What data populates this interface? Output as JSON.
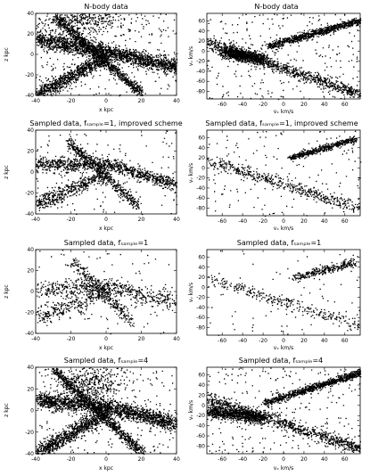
{
  "chart_data": [
    {
      "type": "scatter",
      "title": "N-body data",
      "xlabel": "x kpc",
      "ylabel": "z kpc",
      "xlim": [
        -40,
        40
      ],
      "ylim": [
        -40,
        40
      ],
      "xticks": [
        "-40",
        "-20",
        "0",
        "20",
        "40"
      ],
      "yticks": [
        "40",
        "20",
        "0",
        "-20",
        "-40"
      ],
      "density": "high",
      "structure": [
        {
          "kind": "band",
          "from": [
            -40,
            15
          ],
          "to": [
            0,
            3
          ],
          "spread": 7
        },
        {
          "kind": "band",
          "from": [
            0,
            3
          ],
          "to": [
            40,
            -12
          ],
          "spread": 6
        },
        {
          "kind": "band",
          "from": [
            -30,
            38
          ],
          "to": [
            20,
            -38
          ],
          "spread": 4
        },
        {
          "kind": "band",
          "from": [
            -40,
            -40
          ],
          "to": [
            0,
            -2
          ],
          "spread": 6
        },
        {
          "kind": "blob",
          "center": [
            -14,
            34
          ],
          "radius": [
            13,
            6
          ]
        },
        {
          "kind": "uniform"
        }
      ]
    },
    {
      "type": "scatter",
      "title": "N-body data",
      "xlabel": "vₓ km/s",
      "ylabel": "vᵧ km/s",
      "xlim": [
        -75,
        75
      ],
      "ylim": [
        -95,
        75
      ],
      "xticks": [
        "-60",
        "-40",
        "-20",
        "0",
        "20",
        "40",
        "60"
      ],
      "yticks": [
        "60",
        "40",
        "20",
        "0",
        "-20",
        "-40",
        "-60",
        "-80"
      ],
      "density": "high",
      "structure": [
        {
          "kind": "band",
          "from": [
            -75,
            18
          ],
          "to": [
            75,
            -85
          ],
          "spread": 10
        },
        {
          "kind": "band",
          "from": [
            -15,
            10
          ],
          "to": [
            75,
            62
          ],
          "spread": 6
        },
        {
          "kind": "band",
          "from": [
            -60,
            0
          ],
          "to": [
            -20,
            -15
          ],
          "spread": 10
        },
        {
          "kind": "uniform"
        }
      ]
    },
    {
      "type": "scatter",
      "title": "Sampled data, fₛₐₘₚₗₑ=1, improved scheme",
      "xlabel": "x kpc",
      "ylabel": "z kpc",
      "xlim": [
        -40,
        40
      ],
      "ylim": [
        -40,
        40
      ],
      "xticks": [
        "-40",
        "-20",
        "0",
        "20",
        "40"
      ],
      "yticks": [
        "40",
        "20",
        "0",
        "-20",
        "-40"
      ],
      "density": "medium",
      "structure": [
        {
          "kind": "band",
          "from": [
            -40,
            8
          ],
          "to": [
            0,
            8
          ],
          "spread": 6
        },
        {
          "kind": "band",
          "from": [
            0,
            8
          ],
          "to": [
            40,
            -12
          ],
          "spread": 5
        },
        {
          "kind": "band",
          "from": [
            -22,
            30
          ],
          "to": [
            18,
            -32
          ],
          "spread": 4
        },
        {
          "kind": "band",
          "from": [
            -40,
            -30
          ],
          "to": [
            0,
            -2
          ],
          "spread": 6
        },
        {
          "kind": "uniform"
        }
      ]
    },
    {
      "type": "scatter",
      "title": "Sampled data, fₛₐₘₚₗₑ=1, improved scheme",
      "xlabel": "vₓ km/s",
      "ylabel": "vᵧ km/s",
      "xlim": [
        -75,
        75
      ],
      "ylim": [
        -95,
        75
      ],
      "xticks": [
        "-60",
        "-40",
        "-20",
        "0",
        "20",
        "40",
        "60"
      ],
      "yticks": [
        "60",
        "40",
        "20",
        "0",
        "-20",
        "-40",
        "-60",
        "-80"
      ],
      "density": "medium",
      "structure": [
        {
          "kind": "band",
          "from": [
            -75,
            15
          ],
          "to": [
            75,
            -80
          ],
          "spread": 10
        },
        {
          "kind": "band",
          "from": [
            5,
            20
          ],
          "to": [
            70,
            58
          ],
          "spread": 5
        },
        {
          "kind": "uniform"
        }
      ]
    },
    {
      "type": "scatter",
      "title": "Sampled data, fₛₐₘₚₗₑ=1",
      "xlabel": "x kpc",
      "ylabel": "z kpc",
      "xlim": [
        -40,
        40
      ],
      "ylim": [
        -40,
        40
      ],
      "xticks": [
        "-40",
        "-20",
        "0",
        "20",
        "40"
      ],
      "yticks": [
        "40",
        "20",
        "0",
        "-20",
        "-40"
      ],
      "density": "low",
      "structure": [
        {
          "kind": "band",
          "from": [
            -40,
            2
          ],
          "to": [
            0,
            6
          ],
          "spread": 7
        },
        {
          "kind": "band",
          "from": [
            0,
            6
          ],
          "to": [
            40,
            -10
          ],
          "spread": 7
        },
        {
          "kind": "band",
          "from": [
            -20,
            30
          ],
          "to": [
            15,
            -30
          ],
          "spread": 5
        },
        {
          "kind": "band",
          "from": [
            -40,
            -25
          ],
          "to": [
            0,
            0
          ],
          "spread": 7
        },
        {
          "kind": "uniform"
        }
      ]
    },
    {
      "type": "scatter",
      "title": "Sampled data, fₛₐₘₚₗₑ=1",
      "xlabel": "vₓ km/s",
      "ylabel": "vᵧ km/s",
      "xlim": [
        -75,
        75
      ],
      "ylim": [
        -95,
        75
      ],
      "xticks": [
        "-60",
        "-40",
        "-20",
        "0",
        "20",
        "40",
        "60"
      ],
      "yticks": [
        "60",
        "40",
        "20",
        "0",
        "-20",
        "-40",
        "-60",
        "-80"
      ],
      "density": "low",
      "structure": [
        {
          "kind": "band",
          "from": [
            -75,
            18
          ],
          "to": [
            75,
            -75
          ],
          "spread": 10
        },
        {
          "kind": "band",
          "from": [
            10,
            20
          ],
          "to": [
            70,
            50
          ],
          "spread": 7
        },
        {
          "kind": "uniform"
        }
      ]
    },
    {
      "type": "scatter",
      "title": "Sampled data, fₛₐₘₚₗₑ=4",
      "xlabel": "x kpc",
      "ylabel": "z kpc",
      "xlim": [
        -40,
        40
      ],
      "ylim": [
        -40,
        40
      ],
      "xticks": [
        "-40",
        "-20",
        "0",
        "20",
        "40"
      ],
      "yticks": [
        "40",
        "20",
        "0",
        "-20",
        "-40"
      ],
      "density": "high",
      "structure": [
        {
          "kind": "band",
          "from": [
            -40,
            10
          ],
          "to": [
            0,
            4
          ],
          "spread": 7
        },
        {
          "kind": "band",
          "from": [
            0,
            4
          ],
          "to": [
            40,
            -12
          ],
          "spread": 6
        },
        {
          "kind": "band",
          "from": [
            -30,
            38
          ],
          "to": [
            20,
            -38
          ],
          "spread": 4
        },
        {
          "kind": "band",
          "from": [
            -40,
            -40
          ],
          "to": [
            0,
            -2
          ],
          "spread": 6
        },
        {
          "kind": "blob",
          "center": [
            -10,
            28
          ],
          "radius": [
            10,
            8
          ]
        },
        {
          "kind": "uniform"
        }
      ]
    },
    {
      "type": "scatter",
      "title": "Sampled data, fₛₐₘₚₗₑ=4",
      "xlabel": "vₓ km/s",
      "ylabel": "vᵧ km/s",
      "xlim": [
        -75,
        75
      ],
      "ylim": [
        -95,
        75
      ],
      "xticks": [
        "-60",
        "-40",
        "-20",
        "0",
        "20",
        "40",
        "60"
      ],
      "yticks": [
        "60",
        "40",
        "20",
        "0",
        "-20",
        "-40",
        "-60",
        "-80"
      ],
      "density": "high",
      "structure": [
        {
          "kind": "band",
          "from": [
            -75,
            15
          ],
          "to": [
            75,
            -85
          ],
          "spread": 10
        },
        {
          "kind": "band",
          "from": [
            -20,
            5
          ],
          "to": [
            75,
            65
          ],
          "spread": 6
        },
        {
          "kind": "band",
          "from": [
            -75,
            -10
          ],
          "to": [
            -20,
            -25
          ],
          "spread": 10
        },
        {
          "kind": "uniform"
        }
      ]
    }
  ]
}
